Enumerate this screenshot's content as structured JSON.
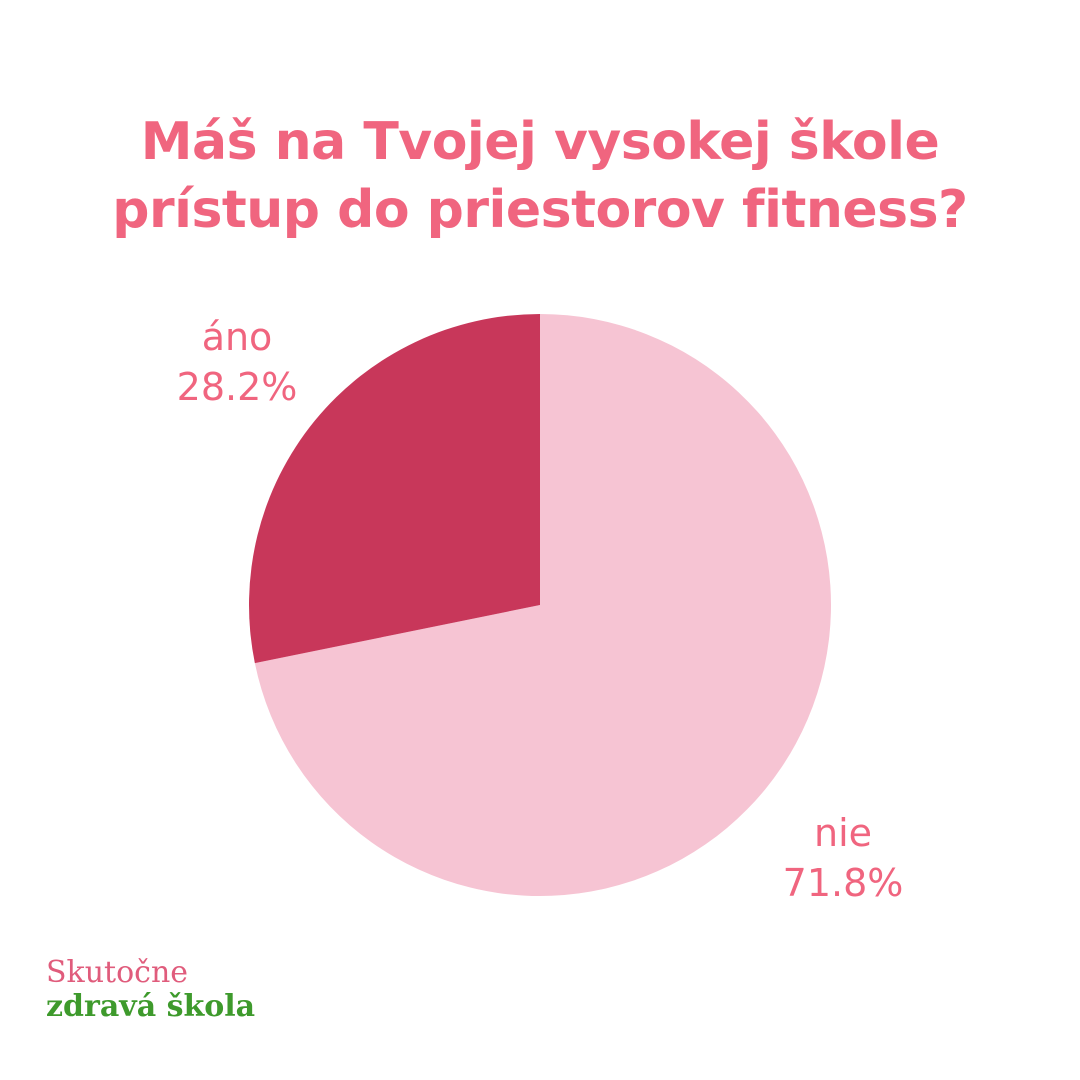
{
  "chart_data": {
    "type": "pie",
    "title": [
      "Máš na Tvojej vysokej škole",
      "prístup do priestorov fitness?"
    ],
    "slices": [
      {
        "label": "áno",
        "percent_label": "28.2%",
        "value": 28.2,
        "color": "#c8375a"
      },
      {
        "label": "nie",
        "percent_label": "71.8%",
        "value": 71.8,
        "color": "#f6c4d3"
      }
    ],
    "start": "12 o'clock",
    "direction": "clockwise, nie first",
    "legend": "none",
    "label_color": "#f0657f"
  },
  "brand": {
    "line1": "Skutočne",
    "line2": "zdravá škola",
    "line1_color": "#e05c7c",
    "line2_color": "#3e9a2c"
  }
}
